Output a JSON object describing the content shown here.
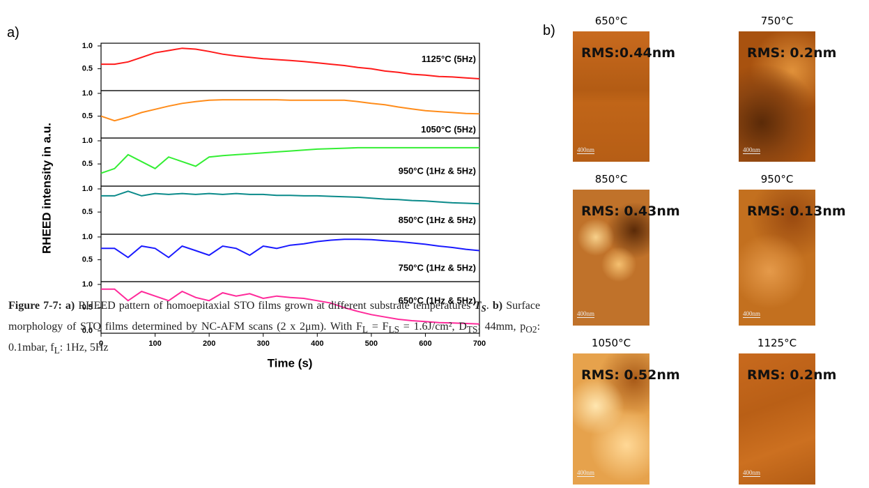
{
  "panel_a": {
    "label": "a)",
    "ylabel": "RHEED intensity in a.u.",
    "xlabel": "Time (s)"
  },
  "chart_data": [
    {
      "type": "line",
      "annotation": "1125°C (5Hz)",
      "color": "#ff1a1a",
      "x": [
        0,
        25,
        50,
        75,
        100,
        125,
        150,
        175,
        200,
        225,
        250,
        275,
        300,
        325,
        350,
        375,
        400,
        425,
        450,
        475,
        500,
        525,
        550,
        575,
        600,
        625,
        650,
        675,
        700
      ],
      "values": [
        0.6,
        0.6,
        0.65,
        0.75,
        0.85,
        0.9,
        0.95,
        0.93,
        0.88,
        0.82,
        0.78,
        0.75,
        0.72,
        0.7,
        0.68,
        0.66,
        0.63,
        0.6,
        0.57,
        0.53,
        0.5,
        0.45,
        0.42,
        0.38,
        0.36,
        0.33,
        0.32,
        0.3,
        0.28
      ],
      "ylim": [
        0.02,
        1.06
      ],
      "yticks": [
        0.5,
        {
          "value": 1,
          "label": "1.0"
        }
      ]
    },
    {
      "type": "line",
      "annotation": "1050°C (5Hz)",
      "color": "#ff8c1a",
      "x": [
        0,
        25,
        50,
        75,
        100,
        125,
        150,
        175,
        200,
        225,
        250,
        275,
        300,
        325,
        350,
        375,
        400,
        425,
        450,
        475,
        500,
        525,
        550,
        575,
        600,
        625,
        650,
        675,
        700
      ],
      "values": [
        0.5,
        0.4,
        0.48,
        0.58,
        0.65,
        0.72,
        0.78,
        0.82,
        0.85,
        0.86,
        0.86,
        0.86,
        0.86,
        0.86,
        0.85,
        0.85,
        0.85,
        0.85,
        0.85,
        0.82,
        0.78,
        0.75,
        0.7,
        0.66,
        0.62,
        0.6,
        0.58,
        0.56,
        0.55
      ],
      "ylim": [
        0.02,
        1.06
      ],
      "yticks": [
        0.5,
        {
          "value": 1,
          "label": "1.0"
        }
      ]
    },
    {
      "type": "line",
      "annotation": "950°C (1Hz & 5Hz)",
      "color": "#33ee33",
      "x": [
        0,
        25,
        50,
        75,
        100,
        125,
        150,
        175,
        200,
        225,
        250,
        275,
        300,
        325,
        350,
        375,
        400,
        425,
        450,
        475,
        500,
        525,
        550,
        575,
        600,
        625,
        650,
        675,
        700
      ],
      "values": [
        0.3,
        0.4,
        0.7,
        0.55,
        0.4,
        0.65,
        0.55,
        0.45,
        0.65,
        0.68,
        0.7,
        0.72,
        0.74,
        0.76,
        0.78,
        0.8,
        0.82,
        0.83,
        0.84,
        0.85,
        0.85,
        0.85,
        0.85,
        0.85,
        0.85,
        0.85,
        0.85,
        0.85,
        0.85
      ],
      "ylim": [
        0.02,
        1.06
      ],
      "yticks": [
        0.5,
        {
          "value": 1,
          "label": "1.0"
        }
      ]
    },
    {
      "type": "line",
      "annotation": "850°C (1Hz & 5Hz)",
      "color": "#0a8a8a",
      "x": [
        0,
        25,
        50,
        75,
        100,
        125,
        150,
        175,
        200,
        225,
        250,
        275,
        300,
        325,
        350,
        375,
        400,
        425,
        450,
        475,
        500,
        525,
        550,
        575,
        600,
        625,
        650,
        675,
        700
      ],
      "values": [
        0.85,
        0.85,
        0.95,
        0.85,
        0.9,
        0.88,
        0.9,
        0.88,
        0.9,
        0.88,
        0.9,
        0.88,
        0.88,
        0.86,
        0.86,
        0.85,
        0.85,
        0.84,
        0.83,
        0.82,
        0.8,
        0.78,
        0.77,
        0.75,
        0.74,
        0.72,
        0.7,
        0.69,
        0.68
      ],
      "ylim": [
        0.02,
        1.06
      ],
      "yticks": [
        0.5,
        {
          "value": 1,
          "label": "1.0"
        }
      ]
    },
    {
      "type": "line",
      "annotation": "750°C (1Hz & 5Hz)",
      "color": "#1a1aff",
      "x": [
        0,
        25,
        50,
        75,
        100,
        125,
        150,
        175,
        200,
        225,
        250,
        275,
        300,
        325,
        350,
        375,
        400,
        425,
        450,
        475,
        500,
        525,
        550,
        575,
        600,
        625,
        650,
        675,
        700
      ],
      "values": [
        0.75,
        0.75,
        0.55,
        0.8,
        0.75,
        0.55,
        0.8,
        0.7,
        0.6,
        0.8,
        0.75,
        0.6,
        0.8,
        0.75,
        0.82,
        0.85,
        0.9,
        0.93,
        0.95,
        0.95,
        0.94,
        0.92,
        0.9,
        0.87,
        0.84,
        0.8,
        0.77,
        0.73,
        0.7
      ],
      "ylim": [
        0.02,
        1.06
      ],
      "yticks": [
        0.5,
        {
          "value": 1,
          "label": "1.0"
        }
      ]
    },
    {
      "type": "line",
      "annotation": "650°C (1Hz & 5Hz)",
      "color": "#ff2a9a",
      "x": [
        0,
        25,
        50,
        75,
        100,
        125,
        150,
        175,
        200,
        225,
        250,
        275,
        300,
        325,
        350,
        375,
        400,
        425,
        450,
        475,
        500,
        525,
        550,
        575,
        600,
        625,
        650,
        675,
        700
      ],
      "values": [
        0.9,
        0.9,
        0.65,
        0.85,
        0.75,
        0.65,
        0.85,
        0.72,
        0.65,
        0.82,
        0.75,
        0.8,
        0.7,
        0.75,
        0.72,
        0.7,
        0.65,
        0.6,
        0.5,
        0.42,
        0.35,
        0.3,
        0.25,
        0.22,
        0.2,
        0.18,
        0.17,
        0.16,
        0.15
      ],
      "ylim": [
        -0.05,
        1.06
      ],
      "yticks": [
        {
          "value": 0,
          "label": "0.0"
        },
        0.5,
        {
          "value": 1,
          "label": "1.0"
        }
      ],
      "xlim": [
        0,
        700
      ],
      "xticks": [
        0,
        100,
        200,
        300,
        400,
        500,
        600,
        700
      ]
    }
  ],
  "panel_b": {
    "label": "b)",
    "images": [
      {
        "temperature": "650°C",
        "rms": "RMS:0.44nm",
        "scale": "400nm"
      },
      {
        "temperature": "750°C",
        "rms": "RMS: 0.2nm",
        "scale": "400nm"
      },
      {
        "temperature": "850°C",
        "rms": "RMS: 0.43nm",
        "scale": "400nm"
      },
      {
        "temperature": "950°C",
        "rms": "RMS: 0.13nm",
        "scale": "400nm"
      },
      {
        "temperature": "1050°C",
        "rms": "RMS: 0.52nm",
        "scale": "400nm"
      },
      {
        "temperature": "1125°C",
        "rms": "RMS: 0.2nm",
        "scale": "400nm"
      }
    ]
  },
  "caption": [
    "Figure 7-7: a)",
    "RHEED pattern of homoepitaxial STO films grown at different substrate temperatures",
    "T",
    "S",
    ".",
    "b)",
    "Surface morphology of STO films determined by NC-AFM scans (2 x 2μm). With F",
    "L",
    "= F",
    "LS",
    "= 1.6J/cm², D",
    "TS",
    ": 44mm, p",
    "O2",
    ": 0.1mbar, f",
    "L",
    ": 1Hz, 5Hz"
  ]
}
